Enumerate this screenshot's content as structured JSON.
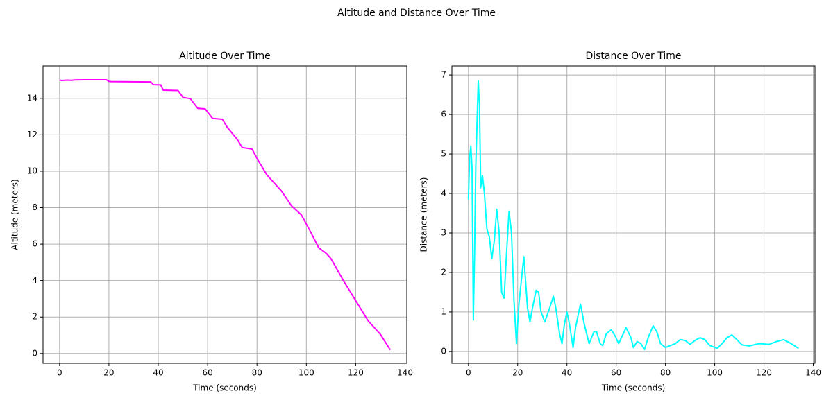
{
  "title": "Altitude and Distance Over Time",
  "chart_data": [
    {
      "type": "line",
      "title": "Altitude Over Time",
      "xlabel": "Time (seconds)",
      "ylabel": "Altitude (meters)",
      "color": "#ff00ff",
      "grid": true,
      "xlim": [
        -6.7,
        140.7
      ],
      "ylim": [
        -0.54,
        15.78
      ],
      "xticks": [
        0,
        20,
        40,
        60,
        80,
        100,
        120,
        140
      ],
      "yticks": [
        0,
        2,
        4,
        6,
        8,
        10,
        12,
        14
      ],
      "x": [
        0,
        1,
        3,
        5,
        6,
        10,
        19,
        20,
        21,
        37,
        38,
        41,
        42,
        45,
        48,
        50,
        53,
        56,
        59,
        62,
        66,
        68,
        72,
        74,
        78,
        80,
        84,
        88,
        90,
        94,
        98,
        102,
        105,
        108,
        110,
        115,
        120,
        125,
        130,
        134
      ],
      "values": [
        15.0,
        14.98,
        15.0,
        14.99,
        15.01,
        15.02,
        15.02,
        14.93,
        14.92,
        14.9,
        14.75,
        14.74,
        14.45,
        14.44,
        14.43,
        14.05,
        13.98,
        13.45,
        13.42,
        12.9,
        12.85,
        12.4,
        11.75,
        11.3,
        11.22,
        10.7,
        9.8,
        9.2,
        8.9,
        8.1,
        7.6,
        6.6,
        5.8,
        5.5,
        5.2,
        4.0,
        2.9,
        1.8,
        1.05,
        0.2
      ]
    },
    {
      "type": "line",
      "title": "Distance Over Time",
      "xlabel": "Time (seconds)",
      "ylabel": "Distance (meters)",
      "color": "#00ffff",
      "grid": true,
      "xlim": [
        -6.7,
        140.7
      ],
      "ylim": [
        -0.3,
        7.23
      ],
      "xticks": [
        0,
        20,
        40,
        60,
        80,
        100,
        120,
        140
      ],
      "yticks": [
        0,
        1,
        2,
        3,
        4,
        5,
        6,
        7
      ],
      "x": [
        0,
        0.5,
        1,
        1.5,
        2,
        2.5,
        3,
        4,
        4.5,
        5,
        5.7,
        6.5,
        7.5,
        8.5,
        9.5,
        10.5,
        11.5,
        12.5,
        13.5,
        14.5,
        15.5,
        16.5,
        17.5,
        18.5,
        19.5,
        20.5,
        22.5,
        24,
        25,
        26,
        27.5,
        28.5,
        29.5,
        31,
        33,
        34.5,
        35.5,
        37,
        38,
        39,
        40,
        41,
        42.5,
        43.5,
        45.5,
        47,
        49,
        51,
        52,
        53.5,
        54.5,
        56,
        58,
        59.5,
        61,
        64,
        66,
        67,
        68.5,
        70,
        71.5,
        73,
        75,
        76.5,
        78,
        80,
        82,
        84,
        86,
        88,
        90,
        92,
        94,
        96,
        98,
        101,
        103,
        105,
        107,
        109,
        111,
        114,
        118,
        122,
        125,
        128,
        131,
        134
      ],
      "values": [
        3.85,
        4.9,
        5.2,
        4.6,
        0.8,
        2.5,
        4.7,
        6.85,
        6.2,
        4.15,
        4.45,
        4.0,
        3.1,
        2.9,
        2.35,
        2.8,
        3.6,
        3.0,
        1.5,
        1.35,
        2.5,
        3.55,
        3.0,
        1.3,
        0.2,
        1.2,
        2.4,
        1.1,
        0.75,
        1.1,
        1.55,
        1.5,
        1.0,
        0.75,
        1.1,
        1.4,
        1.1,
        0.45,
        0.2,
        0.7,
        1.0,
        0.7,
        0.1,
        0.6,
        1.2,
        0.7,
        0.2,
        0.5,
        0.5,
        0.2,
        0.15,
        0.45,
        0.55,
        0.4,
        0.2,
        0.6,
        0.35,
        0.1,
        0.25,
        0.2,
        0.05,
        0.35,
        0.65,
        0.5,
        0.2,
        0.1,
        0.15,
        0.2,
        0.3,
        0.28,
        0.18,
        0.28,
        0.35,
        0.3,
        0.15,
        0.08,
        0.2,
        0.35,
        0.42,
        0.3,
        0.17,
        0.14,
        0.2,
        0.18,
        0.25,
        0.3,
        0.2,
        0.08
      ]
    }
  ]
}
